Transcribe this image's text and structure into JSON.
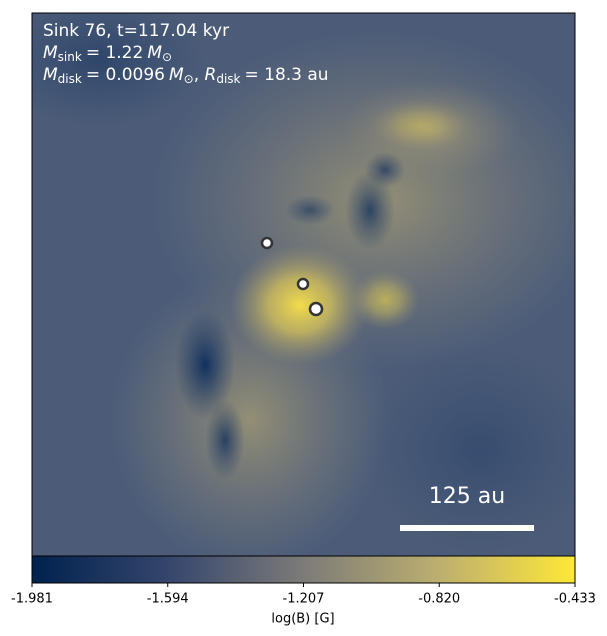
{
  "chart_data": {
    "type": "heatmap",
    "annotations": [
      [
        "Sink 76, t=117.04 kyr"
      ],
      [
        "M",
        "sink",
        "= 1.22",
        "M",
        "⊙"
      ],
      [
        "M",
        "disk",
        "= 0.0096",
        "M",
        "⊙",
        ", ",
        "R",
        "disk",
        "= 18.3 au"
      ]
    ],
    "scale_bar_label": "125 au",
    "colorbar": {
      "label": "log(B) [G]",
      "lim": [
        -1.981,
        -0.433
      ],
      "ticks": [
        -1.981,
        -1.594,
        -1.207,
        -0.82,
        -0.433
      ],
      "tick_labels": [
        "-1.981",
        "-1.594",
        "-1.207",
        "-0.820",
        "-0.433"
      ]
    }
  }
}
